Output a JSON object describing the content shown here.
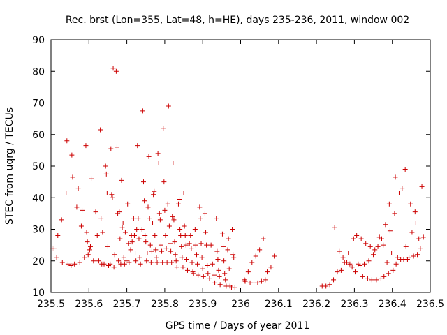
{
  "chart_data": {
    "type": "scatter",
    "title": "Rec. brst (Lon=355, Lat=48, h=HE), days 235-236, 2011, window 002",
    "xlabel": "GPS time / Days of year 2011",
    "ylabel": "STEC from uqrg / TECUs",
    "xlim": [
      235.5,
      236.5
    ],
    "ylim": [
      10,
      90
    ],
    "xticks": [
      235.5,
      235.6,
      235.7,
      235.8,
      235.9,
      236.0,
      236.1,
      236.2,
      236.3,
      236.4,
      236.5
    ],
    "xtick_labels": [
      "235.5",
      "235.6",
      "235.7",
      "235.8",
      "235.9",
      "236",
      "236.1",
      "236.2",
      "236.3",
      "236.4",
      "236.5"
    ],
    "yticks": [
      10,
      20,
      30,
      40,
      50,
      60,
      70,
      80,
      90
    ],
    "ytick_labels": [
      "10",
      "20",
      "30",
      "40",
      "50",
      "60",
      "70",
      "80",
      "90"
    ],
    "marker": "+",
    "color": "#cc0000",
    "series": [
      {
        "name": "STEC",
        "points": [
          [
            235.503,
            24
          ],
          [
            235.508,
            24
          ],
          [
            235.515,
            21
          ],
          [
            235.518,
            28
          ],
          [
            235.528,
            33
          ],
          [
            235.53,
            19.5
          ],
          [
            235.54,
            41.5
          ],
          [
            235.542,
            58
          ],
          [
            235.545,
            19
          ],
          [
            235.553,
            18.5
          ],
          [
            235.555,
            53.5
          ],
          [
            235.557,
            46.5
          ],
          [
            235.562,
            19
          ],
          [
            235.568,
            37
          ],
          [
            235.572,
            43
          ],
          [
            235.576,
            19.5
          ],
          [
            235.58,
            31
          ],
          [
            235.582,
            36
          ],
          [
            235.588,
            21
          ],
          [
            235.592,
            56.5
          ],
          [
            235.594,
            29
          ],
          [
            235.596,
            26
          ],
          [
            235.598,
            22
          ],
          [
            235.602,
            23.5
          ],
          [
            235.604,
            24.5
          ],
          [
            235.606,
            46
          ],
          [
            235.612,
            20
          ],
          [
            235.618,
            35.5
          ],
          [
            235.622,
            28
          ],
          [
            235.626,
            20
          ],
          [
            235.63,
            61.5
          ],
          [
            235.632,
            33.5
          ],
          [
            235.634,
            19
          ],
          [
            235.636,
            29
          ],
          [
            235.64,
            19
          ],
          [
            235.644,
            50
          ],
          [
            235.646,
            47.5
          ],
          [
            235.648,
            41.5
          ],
          [
            235.65,
            24.5
          ],
          [
            235.652,
            18.5
          ],
          [
            235.656,
            19
          ],
          [
            235.658,
            55.5
          ],
          [
            235.66,
            41
          ],
          [
            235.662,
            40
          ],
          [
            235.664,
            81
          ],
          [
            235.666,
            18
          ],
          [
            235.668,
            22
          ],
          [
            235.672,
            80
          ],
          [
            235.674,
            56
          ],
          [
            235.676,
            35
          ],
          [
            235.678,
            20
          ],
          [
            235.68,
            35.5
          ],
          [
            235.682,
            27
          ],
          [
            235.684,
            19
          ],
          [
            235.686,
            45.5
          ],
          [
            235.688,
            30.5
          ],
          [
            235.69,
            32
          ],
          [
            235.692,
            21
          ],
          [
            235.694,
            19
          ],
          [
            235.696,
            29
          ],
          [
            235.698,
            20
          ],
          [
            235.702,
            38
          ],
          [
            235.704,
            25.5
          ],
          [
            235.706,
            19.5
          ],
          [
            235.71,
            23.5
          ],
          [
            235.712,
            28
          ],
          [
            235.714,
            26
          ],
          [
            235.718,
            33.5
          ],
          [
            235.72,
            28
          ],
          [
            235.722,
            22.5
          ],
          [
            235.724,
            20
          ],
          [
            235.726,
            30
          ],
          [
            235.728,
            56.5
          ],
          [
            235.73,
            33.5
          ],
          [
            235.732,
            27
          ],
          [
            235.734,
            21
          ],
          [
            235.736,
            19
          ],
          [
            235.74,
            30
          ],
          [
            235.742,
            67.5
          ],
          [
            235.744,
            45
          ],
          [
            235.746,
            39
          ],
          [
            235.748,
            28
          ],
          [
            235.75,
            26
          ],
          [
            235.752,
            20
          ],
          [
            235.754,
            22.5
          ],
          [
            235.756,
            37
          ],
          [
            235.758,
            53
          ],
          [
            235.76,
            33.5
          ],
          [
            235.762,
            25
          ],
          [
            235.764,
            19.5
          ],
          [
            235.766,
            23
          ],
          [
            235.768,
            32
          ],
          [
            235.77,
            41
          ],
          [
            235.772,
            42
          ],
          [
            235.774,
            28
          ],
          [
            235.776,
            23.5
          ],
          [
            235.778,
            21
          ],
          [
            235.78,
            19.5
          ],
          [
            235.782,
            54
          ],
          [
            235.784,
            51
          ],
          [
            235.786,
            35
          ],
          [
            235.788,
            33
          ],
          [
            235.79,
            25
          ],
          [
            235.792,
            23
          ],
          [
            235.794,
            19.5
          ],
          [
            235.796,
            62
          ],
          [
            235.798,
            45
          ],
          [
            235.8,
            36
          ],
          [
            235.802,
            28
          ],
          [
            235.804,
            24
          ],
          [
            235.806,
            19.5
          ],
          [
            235.808,
            38
          ],
          [
            235.81,
            69
          ],
          [
            235.812,
            31
          ],
          [
            235.814,
            25.5
          ],
          [
            235.816,
            23
          ],
          [
            235.818,
            19.5
          ],
          [
            235.82,
            34
          ],
          [
            235.822,
            51
          ],
          [
            235.824,
            33
          ],
          [
            235.826,
            26
          ],
          [
            235.828,
            22
          ],
          [
            235.83,
            20
          ],
          [
            235.832,
            18
          ],
          [
            235.836,
            38
          ],
          [
            235.838,
            39.5
          ],
          [
            235.84,
            30
          ],
          [
            235.842,
            28
          ],
          [
            235.844,
            24.5
          ],
          [
            235.846,
            21
          ],
          [
            235.848,
            18
          ],
          [
            235.85,
            41.5
          ],
          [
            235.852,
            31
          ],
          [
            235.854,
            28
          ],
          [
            235.856,
            25
          ],
          [
            235.858,
            20.5
          ],
          [
            235.86,
            17
          ],
          [
            235.865,
            25.5
          ],
          [
            235.868,
            28
          ],
          [
            235.87,
            24
          ],
          [
            235.872,
            19.5
          ],
          [
            235.874,
            16.5
          ],
          [
            235.876,
            16
          ],
          [
            235.88,
            30
          ],
          [
            235.882,
            25
          ],
          [
            235.884,
            22
          ],
          [
            235.886,
            19
          ],
          [
            235.888,
            15.5
          ],
          [
            235.892,
            37
          ],
          [
            235.894,
            33.5
          ],
          [
            235.896,
            25.5
          ],
          [
            235.898,
            21
          ],
          [
            235.9,
            17.5
          ],
          [
            235.902,
            15
          ],
          [
            235.906,
            35
          ],
          [
            235.908,
            29
          ],
          [
            235.91,
            25
          ],
          [
            235.912,
            18.5
          ],
          [
            235.914,
            16
          ],
          [
            235.918,
            14.5
          ],
          [
            235.922,
            25
          ],
          [
            235.926,
            19
          ],
          [
            235.93,
            15.5
          ],
          [
            235.932,
            13
          ],
          [
            235.936,
            33.5
          ],
          [
            235.938,
            23
          ],
          [
            235.94,
            20.5
          ],
          [
            235.942,
            17
          ],
          [
            235.944,
            15
          ],
          [
            235.946,
            12.5
          ],
          [
            235.952,
            28.5
          ],
          [
            235.954,
            24.5
          ],
          [
            235.956,
            20
          ],
          [
            235.958,
            16
          ],
          [
            235.96,
            14
          ],
          [
            235.962,
            12
          ],
          [
            235.966,
            23.5
          ],
          [
            235.968,
            27
          ],
          [
            235.97,
            17.5
          ],
          [
            235.972,
            12
          ],
          [
            235.976,
            11.5
          ],
          [
            235.978,
            30
          ],
          [
            235.98,
            22
          ],
          [
            235.982,
            21
          ],
          [
            235.985,
            11.5
          ],
          [
            236.01,
            14
          ],
          [
            236.012,
            13.5
          ],
          [
            236.02,
            16.5
          ],
          [
            236.025,
            13
          ],
          [
            236.03,
            19.5
          ],
          [
            236.035,
            13
          ],
          [
            236.04,
            21.5
          ],
          [
            236.045,
            13
          ],
          [
            236.05,
            23.5
          ],
          [
            236.055,
            13.5
          ],
          [
            236.06,
            27
          ],
          [
            236.065,
            14
          ],
          [
            236.07,
            16.5
          ],
          [
            236.08,
            18
          ],
          [
            236.09,
            21.5
          ],
          [
            236.215,
            12
          ],
          [
            236.225,
            12
          ],
          [
            236.235,
            12.5
          ],
          [
            236.245,
            14
          ],
          [
            236.248,
            30.5
          ],
          [
            236.255,
            16.5
          ],
          [
            236.26,
            23
          ],
          [
            236.265,
            17
          ],
          [
            236.27,
            21
          ],
          [
            236.274,
            19.5
          ],
          [
            236.28,
            19.5
          ],
          [
            236.284,
            22.5
          ],
          [
            236.288,
            19
          ],
          [
            236.294,
            18
          ],
          [
            236.298,
            27
          ],
          [
            236.302,
            16.5
          ],
          [
            236.306,
            28
          ],
          [
            236.31,
            19
          ],
          [
            236.315,
            18.5
          ],
          [
            236.318,
            27
          ],
          [
            236.322,
            15
          ],
          [
            236.326,
            19
          ],
          [
            236.33,
            25.5
          ],
          [
            236.335,
            14.5
          ],
          [
            236.338,
            20
          ],
          [
            236.342,
            24.5
          ],
          [
            236.346,
            14
          ],
          [
            236.35,
            22
          ],
          [
            236.354,
            23.5
          ],
          [
            236.358,
            14
          ],
          [
            236.362,
            24.5
          ],
          [
            236.366,
            27.5
          ],
          [
            236.37,
            14.5
          ],
          [
            236.372,
            27
          ],
          [
            236.376,
            25
          ],
          [
            236.378,
            15
          ],
          [
            236.382,
            31.5
          ],
          [
            236.386,
            19.5
          ],
          [
            236.39,
            16
          ],
          [
            236.392,
            38
          ],
          [
            236.394,
            29.5
          ],
          [
            236.398,
            22.5
          ],
          [
            236.402,
            17
          ],
          [
            236.406,
            35
          ],
          [
            236.408,
            46.5
          ],
          [
            236.41,
            19
          ],
          [
            236.414,
            21
          ],
          [
            236.418,
            41.5
          ],
          [
            236.422,
            20.5
          ],
          [
            236.426,
            43
          ],
          [
            236.43,
            20.5
          ],
          [
            236.434,
            49
          ],
          [
            236.436,
            24.5
          ],
          [
            236.44,
            20.5
          ],
          [
            236.444,
            21
          ],
          [
            236.448,
            38
          ],
          [
            236.452,
            29
          ],
          [
            236.456,
            21.5
          ],
          [
            236.46,
            35.5
          ],
          [
            236.462,
            32
          ],
          [
            236.466,
            22
          ],
          [
            236.47,
            27
          ],
          [
            236.474,
            24
          ],
          [
            236.478,
            43.5
          ],
          [
            236.482,
            27.5
          ]
        ]
      }
    ]
  }
}
